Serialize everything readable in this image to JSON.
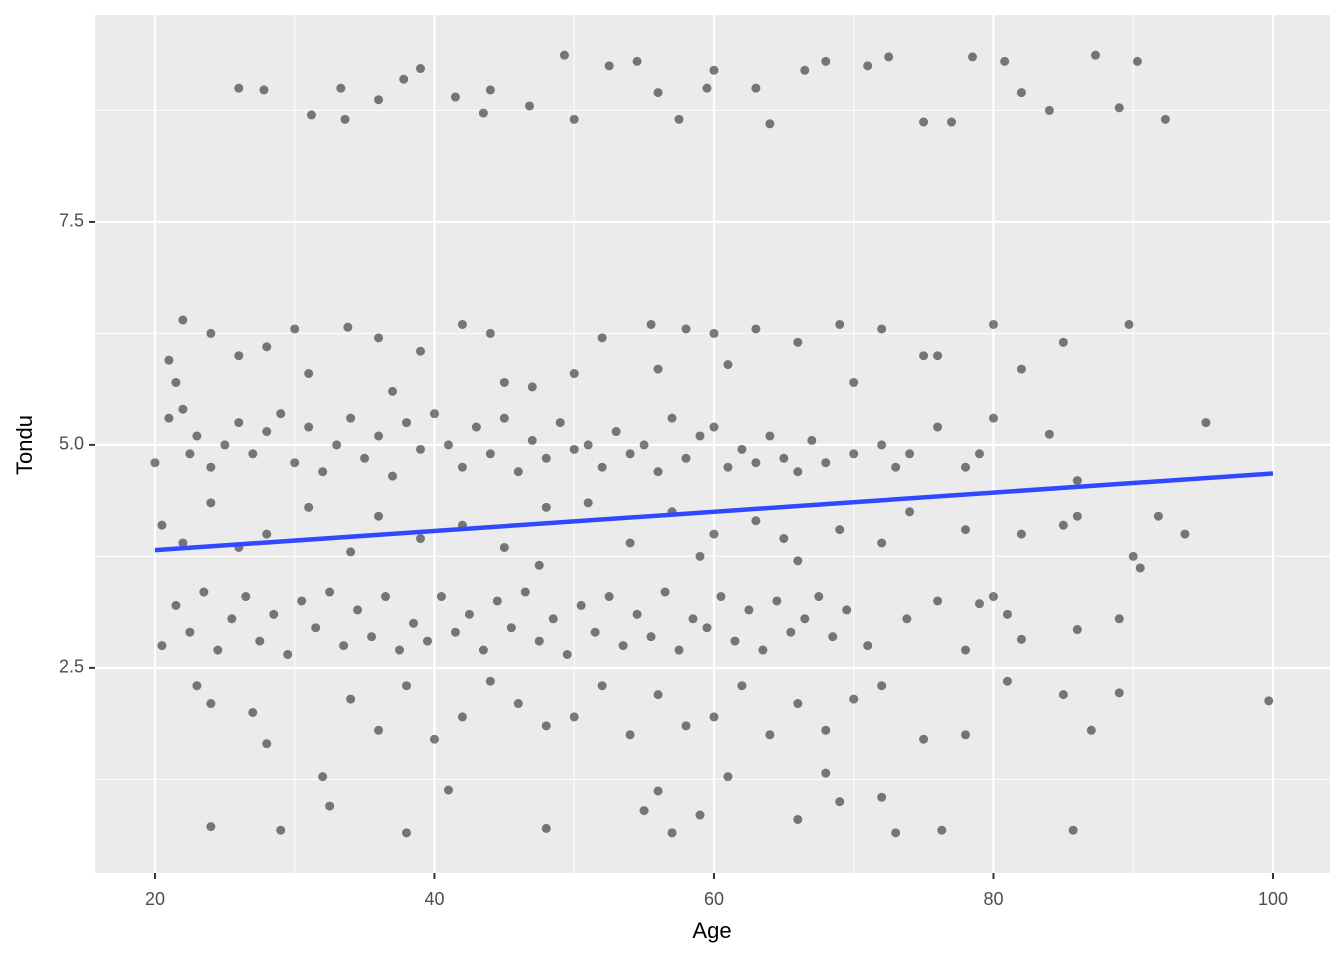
{
  "chart_data": {
    "type": "scatter",
    "xlabel": "Age",
    "ylabel": "Tondu",
    "xlim": [
      15.71,
      104.08
    ],
    "ylim": [
      0.2,
      9.82
    ],
    "xticks": [
      20,
      40,
      60,
      80,
      100
    ],
    "yticks": [
      2.5,
      {
        "value": 5,
        "label": "5.0"
      },
      7.5
    ],
    "x_minor_grid": [
      30,
      50,
      70,
      90
    ],
    "y_minor_grid": [
      1.25,
      3.75,
      6.25,
      8.75
    ],
    "grid": true,
    "series": [
      {
        "color": "#000000",
        "x": [
          26,
          27.8,
          31.2,
          33.3,
          33.6,
          36,
          37.8,
          39,
          41.5,
          43.5,
          44,
          46.8,
          49.3,
          50,
          52.5,
          54.5,
          56,
          57.5,
          59.5,
          60,
          63,
          64,
          66.5,
          68,
          71,
          72.5,
          75,
          77,
          78.5,
          80.8,
          82,
          84,
          87.3,
          89,
          90.3,
          92.3,
          21,
          22,
          24,
          26,
          28,
          30,
          33.8,
          36,
          39,
          42,
          44,
          47,
          50,
          52,
          55.5,
          58,
          60,
          63,
          66,
          69,
          72,
          75,
          80,
          85,
          89.7,
          21.5,
          31,
          37,
          45,
          56,
          61,
          70,
          76,
          82,
          20,
          21,
          22,
          22.5,
          23,
          24,
          25,
          26,
          27,
          28,
          29,
          30,
          31,
          32,
          33,
          34,
          35,
          36,
          37,
          38,
          39,
          40,
          41,
          42,
          43,
          44,
          45,
          46,
          47,
          48,
          49,
          50,
          51,
          52,
          53,
          54,
          55,
          56,
          57,
          58,
          59,
          60,
          61,
          62,
          63,
          64,
          65,
          66,
          67,
          68,
          70,
          72,
          73,
          74,
          76,
          79,
          80,
          84,
          95.2,
          86,
          78,
          20.5,
          22,
          24,
          26,
          28,
          31,
          34,
          36,
          39,
          42,
          45,
          48,
          51,
          54,
          57,
          60,
          63,
          66,
          69,
          72,
          74,
          78,
          82,
          85,
          90,
          93.7,
          86,
          91.8,
          90.5,
          47.5,
          59,
          65,
          20.5,
          21.5,
          22.5,
          23.5,
          24.5,
          25.5,
          26.5,
          27.5,
          28.5,
          29.5,
          30.5,
          31.5,
          32.5,
          33.5,
          34.5,
          35.5,
          36.5,
          37.5,
          38.5,
          39.5,
          40.5,
          41.5,
          42.5,
          43.5,
          44.5,
          45.5,
          46.5,
          47.5,
          48.5,
          49.5,
          50.5,
          51.5,
          52.5,
          53.5,
          54.5,
          55.5,
          56.5,
          57.5,
          58.5,
          59.5,
          60.5,
          61.5,
          62.5,
          63.5,
          64.5,
          65.5,
          66.5,
          67.5,
          68.5,
          69.5,
          71,
          73.8,
          76,
          79,
          80,
          81,
          82,
          86,
          89,
          78,
          23,
          24,
          27,
          28,
          34,
          36,
          38,
          40,
          42,
          44,
          46,
          48,
          50,
          52,
          54,
          56,
          58,
          60,
          62,
          64,
          66,
          68,
          70,
          72,
          75,
          78,
          81,
          85,
          87,
          89,
          99.7,
          24,
          29,
          32,
          32.5,
          38,
          41,
          48,
          55,
          56,
          57,
          59,
          61,
          66,
          68,
          69,
          72,
          73,
          76.3,
          85.7
        ],
        "y": [
          9.0,
          8.98,
          8.7,
          9.0,
          8.65,
          8.87,
          9.1,
          9.22,
          8.9,
          8.72,
          8.98,
          8.8,
          9.37,
          8.65,
          9.25,
          9.3,
          8.95,
          8.65,
          9.0,
          9.2,
          9.0,
          8.6,
          9.2,
          9.3,
          9.25,
          9.35,
          8.62,
          8.62,
          9.35,
          9.3,
          8.95,
          8.75,
          9.37,
          8.78,
          9.3,
          8.65,
          5.95,
          6.4,
          6.25,
          6.0,
          6.1,
          6.3,
          6.32,
          6.2,
          6.05,
          6.35,
          6.25,
          5.65,
          5.8,
          6.2,
          6.35,
          6.3,
          6.25,
          6.3,
          6.15,
          6.35,
          6.3,
          6.0,
          6.35,
          6.15,
          6.35,
          5.7,
          5.8,
          5.6,
          5.7,
          5.85,
          5.9,
          5.7,
          6.0,
          5.85,
          4.8,
          5.3,
          5.4,
          4.9,
          5.1,
          4.75,
          5.0,
          5.25,
          4.9,
          5.15,
          5.35,
          4.8,
          5.2,
          4.7,
          5.0,
          5.3,
          4.85,
          5.1,
          4.65,
          5.25,
          4.95,
          5.35,
          5.0,
          4.75,
          5.2,
          4.9,
          5.3,
          4.7,
          5.05,
          4.85,
          5.25,
          4.95,
          5.0,
          4.75,
          5.15,
          4.9,
          5.0,
          4.7,
          5.3,
          4.85,
          5.1,
          5.2,
          4.75,
          4.95,
          4.8,
          5.1,
          4.85,
          4.7,
          5.05,
          4.8,
          4.9,
          5.0,
          4.75,
          4.9,
          5.2,
          4.9,
          5.3,
          5.12,
          5.25,
          4.6,
          4.75,
          4.1,
          3.9,
          4.35,
          3.85,
          4.0,
          4.3,
          3.8,
          4.2,
          3.95,
          4.1,
          3.85,
          4.3,
          4.35,
          3.9,
          4.25,
          4.0,
          4.15,
          3.7,
          4.05,
          3.9,
          4.25,
          4.05,
          4.0,
          4.1,
          3.75,
          4.0,
          4.2,
          4.2,
          3.62,
          3.65,
          3.75,
          3.95,
          2.75,
          3.2,
          2.9,
          3.35,
          2.7,
          3.05,
          3.3,
          2.8,
          3.1,
          2.65,
          3.25,
          2.95,
          3.35,
          2.75,
          3.15,
          2.85,
          3.3,
          2.7,
          3.0,
          2.8,
          3.3,
          2.9,
          3.1,
          2.7,
          3.25,
          2.95,
          3.35,
          2.8,
          3.05,
          2.65,
          3.2,
          2.9,
          3.3,
          2.75,
          3.1,
          2.85,
          3.35,
          2.7,
          3.05,
          2.95,
          3.3,
          2.8,
          3.15,
          2.7,
          3.25,
          2.9,
          3.05,
          3.3,
          2.85,
          3.15,
          2.75,
          3.05,
          3.25,
          3.22,
          3.3,
          3.1,
          2.82,
          2.93,
          3.05,
          2.7,
          2.3,
          2.1,
          2.0,
          1.65,
          2.15,
          1.8,
          2.3,
          1.7,
          1.95,
          2.35,
          2.1,
          1.85,
          1.95,
          2.3,
          1.75,
          2.2,
          1.85,
          1.95,
          2.3,
          1.75,
          2.1,
          1.8,
          2.15,
          2.3,
          1.7,
          1.75,
          2.35,
          2.2,
          1.8,
          2.22,
          2.13,
          0.72,
          0.68,
          1.28,
          0.95,
          0.65,
          1.13,
          0.7,
          0.9,
          1.12,
          0.65,
          0.85,
          1.28,
          0.8,
          1.32,
          1.0,
          1.05,
          0.65,
          0.68,
          0.68
        ]
      },
      {
        "color": "#3049ff",
        "x": [
          20,
          100
        ],
        "y": [
          3.82,
          4.68
        ]
      }
    ]
  }
}
